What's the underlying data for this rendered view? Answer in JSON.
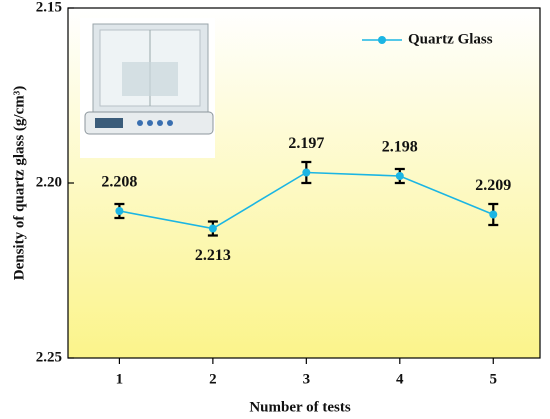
{
  "chart_data": {
    "type": "line",
    "x_label": "Number of tests",
    "y_label": "Density of quartz glass (g/cm³)",
    "x": [
      1,
      2,
      3,
      4,
      5
    ],
    "xlim": [
      0.45,
      5.5
    ],
    "xticks": [
      1,
      2,
      3,
      4,
      5
    ],
    "ylim": [
      2.15,
      2.25
    ],
    "y_inverted": true,
    "yticks": [
      2.15,
      {
        "value": 2.2,
        "label": "2.20"
      },
      2.25
    ],
    "legend": "top-right",
    "series": [
      {
        "name": "Quartz Glass",
        "color": "#1bb5e3",
        "values": [
          2.208,
          2.213,
          2.197,
          2.198,
          2.209
        ],
        "errors": [
          0.002,
          0.002,
          0.003,
          0.002,
          0.003
        ]
      }
    ]
  }
}
